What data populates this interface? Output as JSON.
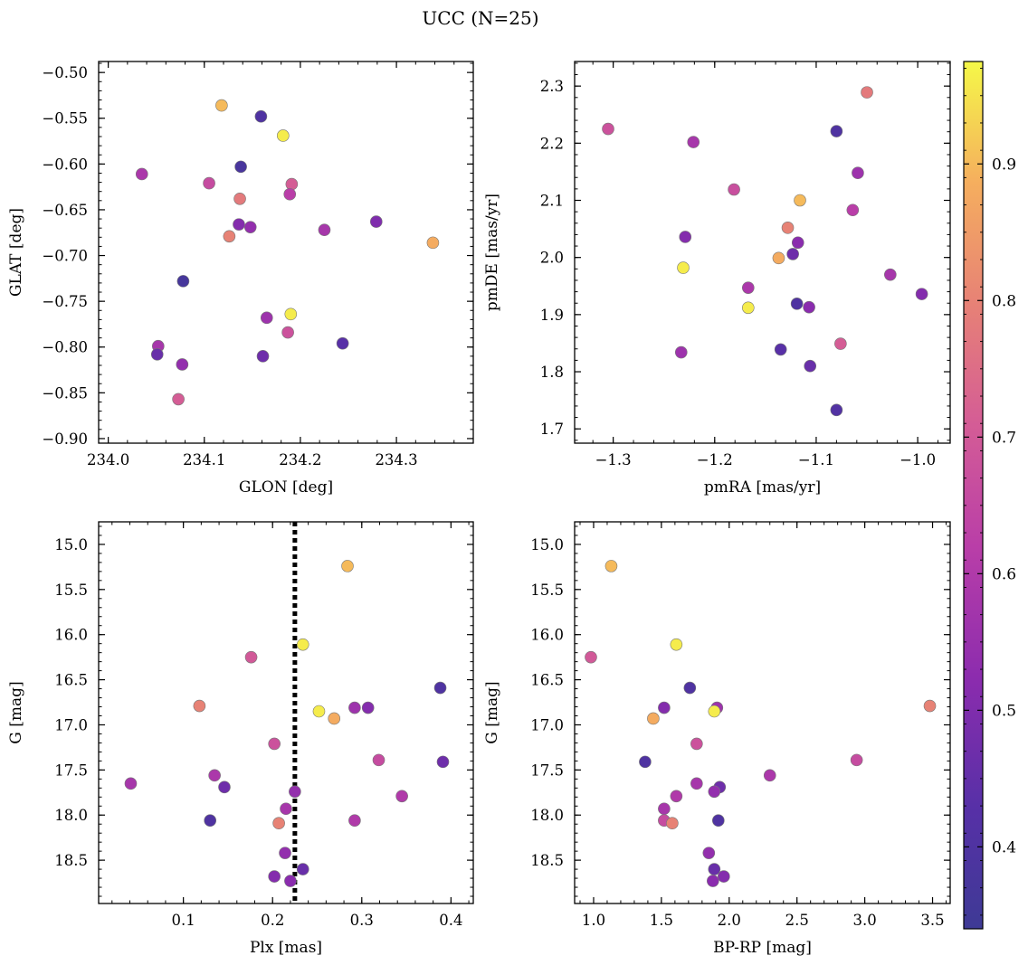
{
  "figure": {
    "title": "UCC (N=25)"
  },
  "colorbar": {
    "colormap": "plasma",
    "range": [
      0.34,
      0.975
    ],
    "ticks": [
      0.4,
      0.5,
      0.6,
      0.7,
      0.8,
      0.9
    ],
    "tick_labels": [
      "0.4",
      "0.5",
      "0.6",
      "0.7",
      "0.8",
      "0.9"
    ]
  },
  "chart_data": [
    {
      "type": "scatter",
      "xlabel": "GLON [deg]",
      "ylabel": "GLAT [deg]",
      "xlim": [
        233.99,
        234.38
      ],
      "ylim": [
        -0.905,
        -0.488
      ],
      "xticks": [
        234.0,
        234.1,
        234.2,
        234.3
      ],
      "xtick_labels": [
        "234.0",
        "234.1",
        "234.2",
        "234.3"
      ],
      "yticks": [
        -0.9,
        -0.85,
        -0.8,
        -0.75,
        -0.7,
        -0.65,
        -0.6,
        -0.55,
        -0.5
      ],
      "ytick_labels": [
        "−0.90",
        "−0.85",
        "−0.80",
        "−0.75",
        "−0.70",
        "−0.65",
        "−0.60",
        "−0.55",
        "−0.50"
      ],
      "points": [
        {
          "x": 234.118,
          "y": -0.536,
          "c": 0.9
        },
        {
          "x": 234.159,
          "y": -0.548,
          "c": 0.4
        },
        {
          "x": 234.182,
          "y": -0.569,
          "c": 0.96
        },
        {
          "x": 234.035,
          "y": -0.611,
          "c": 0.59
        },
        {
          "x": 234.138,
          "y": -0.603,
          "c": 0.38
        },
        {
          "x": 234.105,
          "y": -0.621,
          "c": 0.66
        },
        {
          "x": 234.191,
          "y": -0.622,
          "c": 0.71
        },
        {
          "x": 234.189,
          "y": -0.633,
          "c": 0.62
        },
        {
          "x": 234.137,
          "y": -0.638,
          "c": 0.78
        },
        {
          "x": 234.136,
          "y": -0.666,
          "c": 0.51
        },
        {
          "x": 234.148,
          "y": -0.669,
          "c": 0.54
        },
        {
          "x": 234.225,
          "y": -0.672,
          "c": 0.58
        },
        {
          "x": 234.279,
          "y": -0.663,
          "c": 0.5
        },
        {
          "x": 234.126,
          "y": -0.679,
          "c": 0.8
        },
        {
          "x": 234.338,
          "y": -0.686,
          "c": 0.88
        },
        {
          "x": 234.078,
          "y": -0.728,
          "c": 0.37
        },
        {
          "x": 234.19,
          "y": -0.764,
          "c": 0.96
        },
        {
          "x": 234.165,
          "y": -0.768,
          "c": 0.56
        },
        {
          "x": 234.187,
          "y": -0.784,
          "c": 0.68
        },
        {
          "x": 234.052,
          "y": -0.799,
          "c": 0.58
        },
        {
          "x": 234.244,
          "y": -0.796,
          "c": 0.43
        },
        {
          "x": 234.051,
          "y": -0.808,
          "c": 0.46
        },
        {
          "x": 234.161,
          "y": -0.81,
          "c": 0.47
        },
        {
          "x": 234.077,
          "y": -0.819,
          "c": 0.54
        },
        {
          "x": 234.073,
          "y": -0.857,
          "c": 0.71
        }
      ]
    },
    {
      "type": "scatter",
      "xlabel": "pmRA [mas/yr]",
      "ylabel": "pmDE [mas/yr]",
      "xlim": [
        -1.338,
        -0.968
      ],
      "ylim": [
        1.675,
        2.343
      ],
      "xticks": [
        -1.3,
        -1.2,
        -1.1,
        -1.0
      ],
      "xtick_labels": [
        "−1.3",
        "−1.2",
        "−1.1",
        "−1.0"
      ],
      "yticks": [
        1.7,
        1.8,
        1.9,
        2.0,
        2.1,
        2.2,
        2.3
      ],
      "ytick_labels": [
        "1.7",
        "1.8",
        "1.9",
        "2.0",
        "2.1",
        "2.2",
        "2.3"
      ],
      "points": [
        {
          "x": -1.305,
          "y": 2.225,
          "c": 0.68
        },
        {
          "x": -1.221,
          "y": 2.202,
          "c": 0.58
        },
        {
          "x": -1.08,
          "y": 2.221,
          "c": 0.4
        },
        {
          "x": -1.05,
          "y": 2.289,
          "c": 0.78
        },
        {
          "x": -1.059,
          "y": 2.148,
          "c": 0.56
        },
        {
          "x": -1.181,
          "y": 2.119,
          "c": 0.67
        },
        {
          "x": -1.116,
          "y": 2.1,
          "c": 0.9
        },
        {
          "x": -1.064,
          "y": 2.083,
          "c": 0.62
        },
        {
          "x": -1.229,
          "y": 2.036,
          "c": 0.51
        },
        {
          "x": -1.128,
          "y": 2.052,
          "c": 0.8
        },
        {
          "x": -1.118,
          "y": 2.026,
          "c": 0.52
        },
        {
          "x": -1.123,
          "y": 2.006,
          "c": 0.47
        },
        {
          "x": -1.137,
          "y": 1.999,
          "c": 0.88
        },
        {
          "x": -1.231,
          "y": 1.982,
          "c": 0.96
        },
        {
          "x": -1.027,
          "y": 1.97,
          "c": 0.58
        },
        {
          "x": -1.167,
          "y": 1.947,
          "c": 0.59
        },
        {
          "x": -0.996,
          "y": 1.936,
          "c": 0.51
        },
        {
          "x": -1.167,
          "y": 1.912,
          "c": 0.96
        },
        {
          "x": -1.119,
          "y": 1.919,
          "c": 0.4
        },
        {
          "x": -1.107,
          "y": 1.913,
          "c": 0.52
        },
        {
          "x": -1.076,
          "y": 1.849,
          "c": 0.71
        },
        {
          "x": -1.233,
          "y": 1.834,
          "c": 0.56
        },
        {
          "x": -1.135,
          "y": 1.839,
          "c": 0.43
        },
        {
          "x": -1.106,
          "y": 1.81,
          "c": 0.46
        },
        {
          "x": -1.08,
          "y": 1.733,
          "c": 0.41
        }
      ]
    },
    {
      "type": "scatter",
      "xlabel": "Plx [mas]",
      "ylabel": "G [mag]",
      "xlim": [
        0.005,
        0.425
      ],
      "ylim": [
        18.98,
        14.75
      ],
      "xticks": [
        0.1,
        0.2,
        0.3,
        0.4
      ],
      "xtick_labels": [
        "0.1",
        "0.2",
        "0.3",
        "0.4"
      ],
      "yticks": [
        15.0,
        15.5,
        16.0,
        16.5,
        17.0,
        17.5,
        18.0,
        18.5
      ],
      "ytick_labels": [
        "15.0",
        "15.5",
        "16.0",
        "16.5",
        "17.0",
        "17.5",
        "18.0",
        "18.5"
      ],
      "vline": {
        "x": 0.225,
        "style": "dotted"
      },
      "points": [
        {
          "x": 0.284,
          "y": 15.24,
          "c": 0.9
        },
        {
          "x": 0.234,
          "y": 16.11,
          "c": 0.96
        },
        {
          "x": 0.176,
          "y": 16.25,
          "c": 0.7
        },
        {
          "x": 0.388,
          "y": 16.59,
          "c": 0.4
        },
        {
          "x": 0.118,
          "y": 16.79,
          "c": 0.8
        },
        {
          "x": 0.292,
          "y": 16.81,
          "c": 0.56
        },
        {
          "x": 0.307,
          "y": 16.81,
          "c": 0.51
        },
        {
          "x": 0.252,
          "y": 16.85,
          "c": 0.96
        },
        {
          "x": 0.269,
          "y": 16.93,
          "c": 0.88
        },
        {
          "x": 0.202,
          "y": 17.21,
          "c": 0.68
        },
        {
          "x": 0.319,
          "y": 17.39,
          "c": 0.66
        },
        {
          "x": 0.391,
          "y": 17.41,
          "c": 0.47
        },
        {
          "x": 0.135,
          "y": 17.56,
          "c": 0.59
        },
        {
          "x": 0.041,
          "y": 17.65,
          "c": 0.58
        },
        {
          "x": 0.146,
          "y": 17.69,
          "c": 0.47
        },
        {
          "x": 0.225,
          "y": 17.74,
          "c": 0.54
        },
        {
          "x": 0.345,
          "y": 17.79,
          "c": 0.6
        },
        {
          "x": 0.215,
          "y": 17.93,
          "c": 0.58
        },
        {
          "x": 0.13,
          "y": 18.06,
          "c": 0.4
        },
        {
          "x": 0.292,
          "y": 18.06,
          "c": 0.6
        },
        {
          "x": 0.207,
          "y": 18.09,
          "c": 0.8
        },
        {
          "x": 0.214,
          "y": 18.42,
          "c": 0.54
        },
        {
          "x": 0.234,
          "y": 18.6,
          "c": 0.46
        },
        {
          "x": 0.202,
          "y": 18.68,
          "c": 0.51
        },
        {
          "x": 0.22,
          "y": 18.73,
          "c": 0.52
        }
      ]
    },
    {
      "type": "scatter",
      "xlabel": "BP-RP [mag]",
      "ylabel": "G [mag]",
      "xlim": [
        0.86,
        3.63
      ],
      "ylim": [
        18.98,
        14.75
      ],
      "xticks": [
        1.0,
        1.5,
        2.0,
        2.5,
        3.0,
        3.5
      ],
      "xtick_labels": [
        "1.0",
        "1.5",
        "2.0",
        "2.5",
        "3.0",
        "3.5"
      ],
      "yticks": [
        15.0,
        15.5,
        16.0,
        16.5,
        17.0,
        17.5,
        18.0,
        18.5
      ],
      "ytick_labels": [
        "15.0",
        "15.5",
        "16.0",
        "16.5",
        "17.0",
        "17.5",
        "18.0",
        "18.5"
      ],
      "points": [
        {
          "x": 1.13,
          "y": 15.24,
          "c": 0.9
        },
        {
          "x": 1.61,
          "y": 16.11,
          "c": 0.96
        },
        {
          "x": 0.98,
          "y": 16.25,
          "c": 0.7
        },
        {
          "x": 1.71,
          "y": 16.59,
          "c": 0.4
        },
        {
          "x": 3.48,
          "y": 16.79,
          "c": 0.8
        },
        {
          "x": 1.52,
          "y": 16.81,
          "c": 0.51
        },
        {
          "x": 1.91,
          "y": 16.81,
          "c": 0.56
        },
        {
          "x": 1.89,
          "y": 16.85,
          "c": 0.96
        },
        {
          "x": 1.44,
          "y": 16.93,
          "c": 0.88
        },
        {
          "x": 1.76,
          "y": 17.21,
          "c": 0.68
        },
        {
          "x": 2.94,
          "y": 17.39,
          "c": 0.66
        },
        {
          "x": 1.38,
          "y": 17.41,
          "c": 0.4
        },
        {
          "x": 2.3,
          "y": 17.56,
          "c": 0.59
        },
        {
          "x": 1.76,
          "y": 17.65,
          "c": 0.58
        },
        {
          "x": 1.93,
          "y": 17.69,
          "c": 0.47
        },
        {
          "x": 1.89,
          "y": 17.74,
          "c": 0.54
        },
        {
          "x": 1.61,
          "y": 17.79,
          "c": 0.6
        },
        {
          "x": 1.52,
          "y": 17.93,
          "c": 0.58
        },
        {
          "x": 1.92,
          "y": 18.06,
          "c": 0.4
        },
        {
          "x": 1.52,
          "y": 18.06,
          "c": 0.66
        },
        {
          "x": 1.58,
          "y": 18.09,
          "c": 0.8
        },
        {
          "x": 1.85,
          "y": 18.42,
          "c": 0.54
        },
        {
          "x": 1.89,
          "y": 18.6,
          "c": 0.46
        },
        {
          "x": 1.96,
          "y": 18.68,
          "c": 0.51
        },
        {
          "x": 1.88,
          "y": 18.73,
          "c": 0.52
        }
      ]
    }
  ]
}
